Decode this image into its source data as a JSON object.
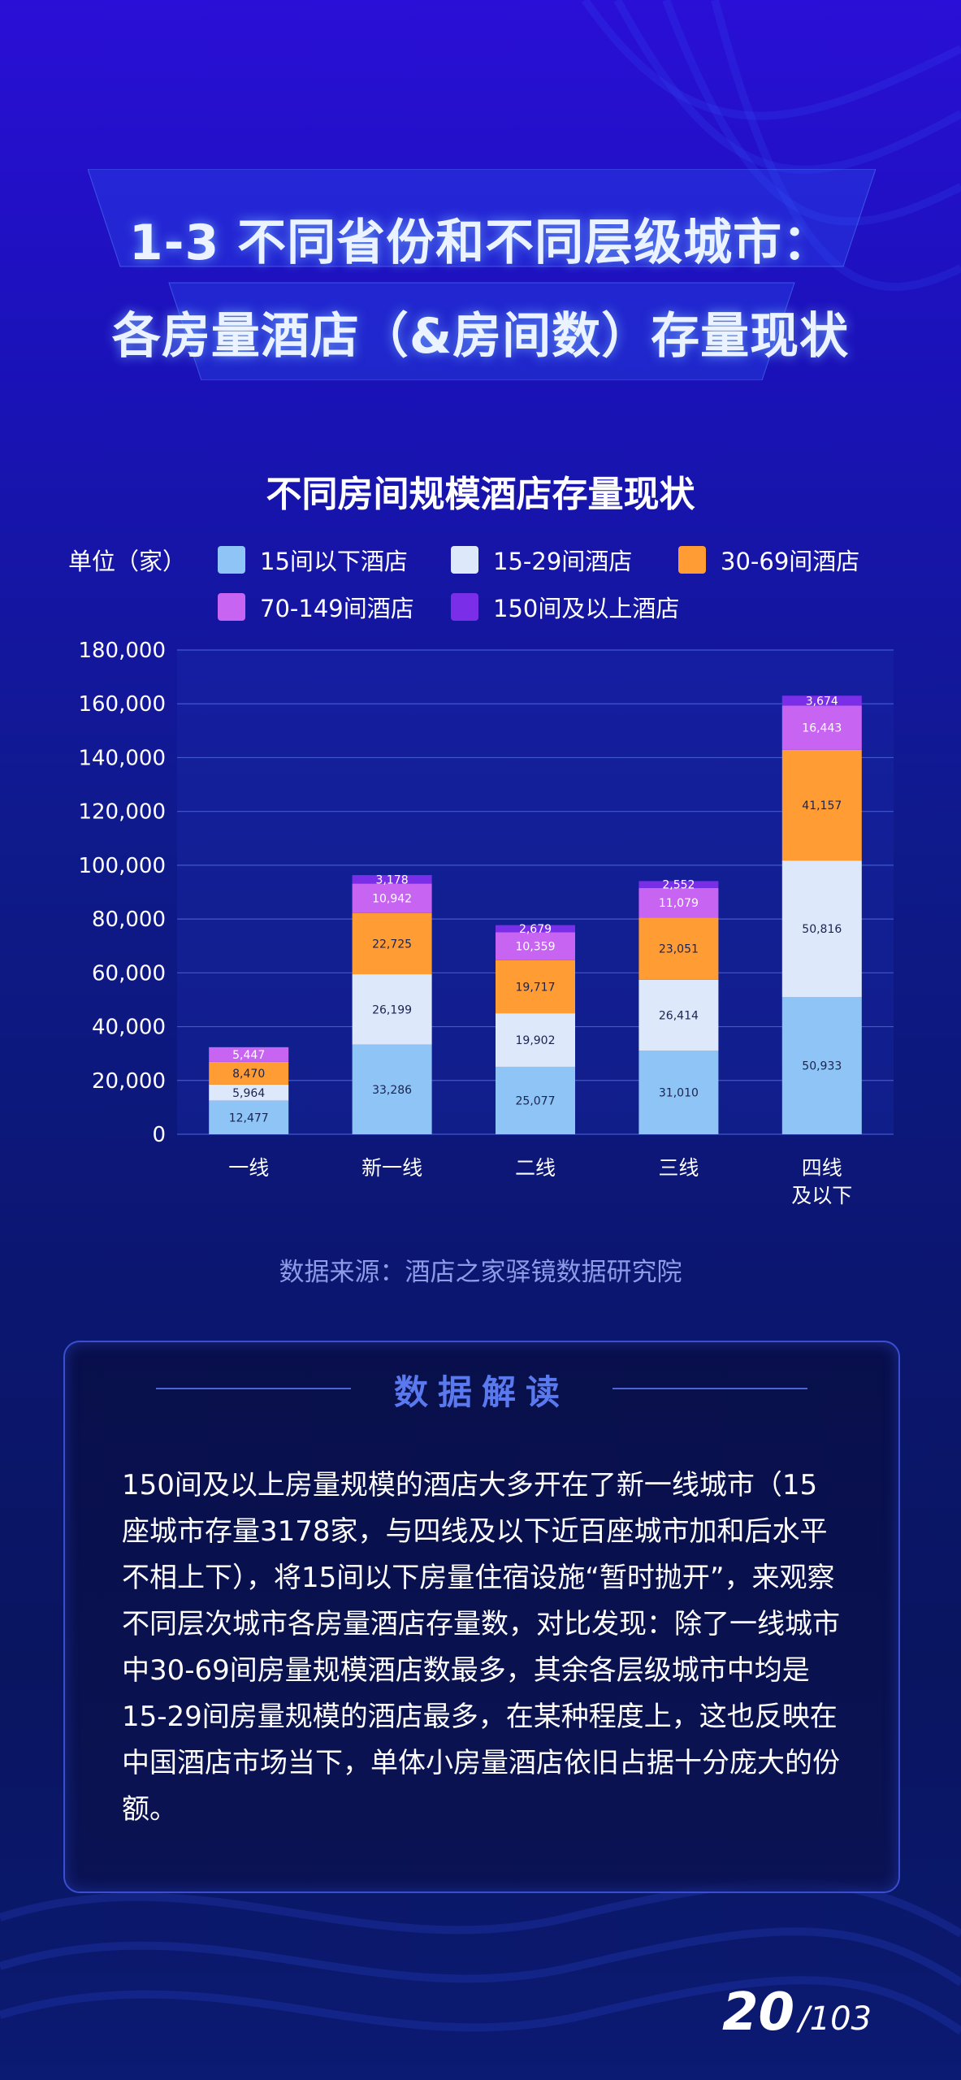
{
  "header": {
    "title_line1": "1-3 不同省份和不同层级城市：",
    "title_line2": "各房量酒店（&房间数）存量现状"
  },
  "chart_data": {
    "type": "bar",
    "stacked": true,
    "title": "不同房间规模酒店存量现状",
    "unit_label": "单位（家）",
    "categories": [
      "一线",
      "新一线",
      "二线",
      "三线",
      "四线\n及以下"
    ],
    "series": [
      {
        "name": "15间以下酒店",
        "color": "#8ec5f6",
        "values": [
          12477,
          33286,
          25077,
          31010,
          50933
        ]
      },
      {
        "name": "15-29间酒店",
        "color": "#dde8fb",
        "values": [
          5964,
          26199,
          19902,
          26414,
          50816
        ]
      },
      {
        "name": "30-69间酒店",
        "color": "#ff9c33",
        "values": [
          8470,
          22725,
          19717,
          23051,
          41157
        ]
      },
      {
        "name": "70-149间酒店",
        "color": "#c864f2",
        "values": [
          5447,
          10942,
          10359,
          11079,
          16443
        ]
      },
      {
        "name": "150间及以上酒店",
        "color": "#7b2ee8",
        "values": [
          null,
          3178,
          2679,
          2552,
          3674
        ]
      }
    ],
    "ylim": [
      0,
      180000
    ],
    "yticks": [
      "0",
      "20,000",
      "40,000",
      "60,000",
      "80,000",
      "100,000",
      "120,000",
      "140,000",
      "160,000",
      "180,000"
    ],
    "grid": true,
    "legend_position": "top"
  },
  "source": "数据来源：酒店之家驿镜数据研究院",
  "analysis": {
    "title": "数据解读",
    "text": "150间及以上房量规模的酒店大多开在了新一线城市（15座城市存量3178家，与四线及以下近百座城市加和后水平不相上下），将15间以下房量住宿设施“暂时抛开”，来观察不同层次城市各房量酒店存量数，对比发现：除了一线城市中30-69间房量规模酒店数最多，其余各层级城市中均是15-29间房量规模的酒店最多，在某种程度上，这也反映在中国酒店市场当下，单体小房量酒店依旧占据十分庞大的份额。"
  },
  "pagination": {
    "current": "20",
    "total": "/103"
  }
}
